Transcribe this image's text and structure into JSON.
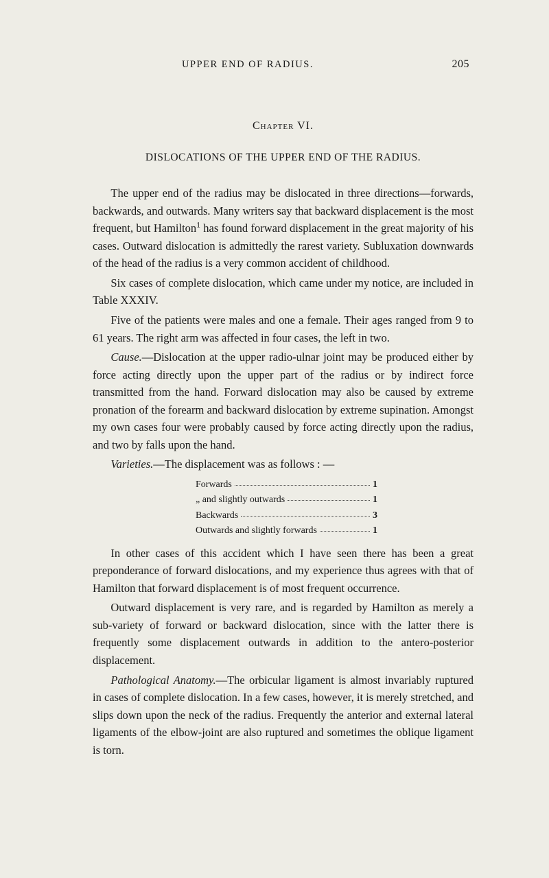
{
  "page": {
    "runningHead": "UPPER END OF RADIUS.",
    "pageNumber": "205",
    "chapterLabel": "Chapter VI.",
    "chapterTitle": "DISLOCATIONS OF THE UPPER END OF THE RADIUS.",
    "paragraphs": {
      "p1a": "The upper end of the radius may be dislocated in three directions—forwards, backwards, and outwards. Many writers say that backward displacement is the most frequent, but Hamilton",
      "p1sup": "1",
      "p1b": " has found forward displacement in the great majority of his cases. Outward dislocation is admittedly the rarest variety. Subluxation downwards of the head of the radius is a very common accident of childhood.",
      "p2": "Six cases of complete dislocation, which came under my notice, are included in Table XXXIV.",
      "p3": "Five of the patients were males and one a female. Their ages ranged from 9 to 61 years. The right arm was affected in four cases, the left in two.",
      "p4_lead_italic": "Cause.",
      "p4": "—Dislocation at the upper radio-ulnar joint may be produced either by force acting directly upon the upper part of the radius or by indirect force transmitted from the hand. Forward dislocation may also be caused by extreme pronation of the forearm and backward dislocation by extreme supination. Amongst my own cases four were probably caused by force acting directly upon the radius, and two by falls upon the hand.",
      "p5_lead_italic": "Varieties.",
      "p5": "—The displacement was as follows : —",
      "p6": "In other cases of this accident which I have seen there has been a great preponderance of forward dislocations, and my experience thus agrees with that of Hamilton that forward displacement is of most frequent occurrence.",
      "p7": "Outward displacement is very rare, and is regarded by Hamilton as merely a sub-variety of forward or backward dislocation, since with the latter there is frequently some displacement outwards in addition to the antero-posterior displacement.",
      "p8_lead_italic": "Pathological Anatomy.",
      "p8": "—The orbicular ligament is almost invariably ruptured in cases of complete dislocation. In a few cases, however, it is merely stretched, and slips down upon the neck of the radius. Frequently the anterior and external lateral ligaments of the elbow-joint are also ruptured and sometimes the oblique ligament is torn."
    },
    "list": [
      {
        "label": "Forwards",
        "value": "1"
      },
      {
        "label": "„      and slightly outwards",
        "value": "1"
      },
      {
        "label": "Backwards",
        "value": "3"
      },
      {
        "label": "Outwards and slightly forwards",
        "value": "1"
      }
    ],
    "style": {
      "background": "#eeede6",
      "textColor": "#1a1a1a",
      "bodyFontSize": 16.5,
      "listFontSize": 14,
      "headFontSize": 15.5
    }
  }
}
